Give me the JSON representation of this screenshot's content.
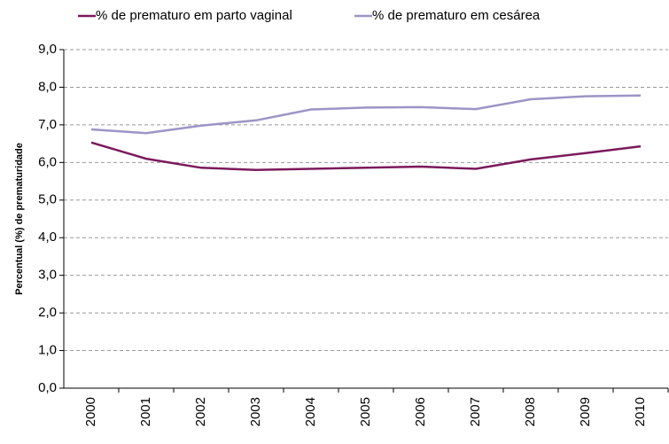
{
  "chart_data": {
    "type": "line",
    "y_label": "Percentual (%) de prematuridade",
    "categories": [
      "2000",
      "2001",
      "2002",
      "2003",
      "2004",
      "2005",
      "2006",
      "2007",
      "2008",
      "2009",
      "2010"
    ],
    "series": [
      {
        "name": "% de prematuro em parto vaginal",
        "color": "#7b1a5c",
        "values": [
          6.53,
          6.1,
          5.86,
          5.8,
          5.83,
          5.86,
          5.89,
          5.83,
          6.08,
          6.25,
          6.43
        ]
      },
      {
        "name": "% de prematuro em cesárea",
        "color": "#9b95c6",
        "values": [
          6.88,
          6.78,
          6.98,
          7.12,
          7.41,
          7.46,
          7.47,
          7.42,
          7.68,
          7.76,
          7.78
        ]
      }
    ],
    "ylim": [
      0,
      9
    ],
    "yticks": [
      {
        "value": 0,
        "label": "0,0"
      },
      {
        "value": 1,
        "label": "1,0"
      },
      {
        "value": 2,
        "label": "2,0"
      },
      {
        "value": 3,
        "label": "3,0"
      },
      {
        "value": 4,
        "label": "4,0"
      },
      {
        "value": 5,
        "label": "5,0"
      },
      {
        "value": 6,
        "label": "6,0"
      },
      {
        "value": 7,
        "label": "7,0"
      },
      {
        "value": 8,
        "label": "8,0"
      },
      {
        "value": 9,
        "label": "9,0"
      }
    ],
    "grid": true
  }
}
